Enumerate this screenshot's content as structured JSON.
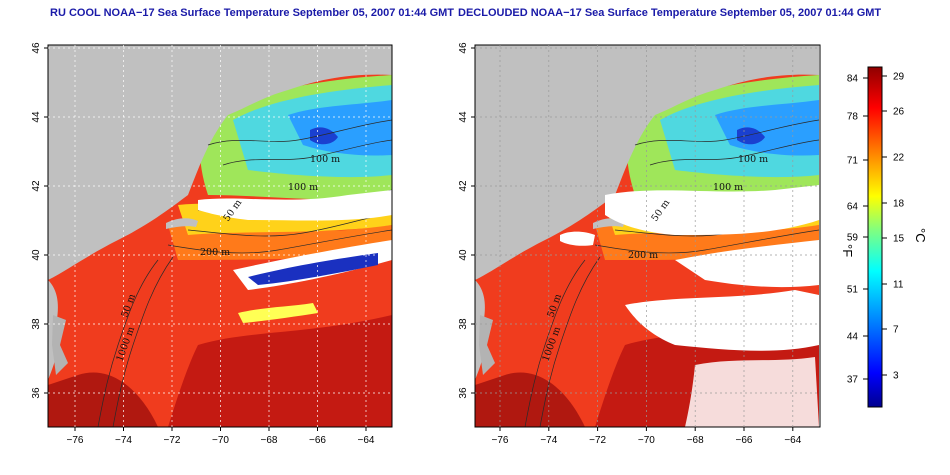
{
  "panels": [
    {
      "title": "RU COOL NOAA−17 Sea Surface Temperature September 05, 2007 01:44 GMT",
      "contour_labels": [
        "100 m",
        "100 m",
        "50 m",
        "200 m",
        "50 m",
        "1000 m"
      ]
    },
    {
      "title": "DECLOUDED NOAA−17 Sea Surface Temperature September 05, 2007 01:44 GMT",
      "contour_labels": [
        "100 m",
        "100 m",
        "50 m",
        "200 m",
        "50 m",
        "1000 m"
      ]
    }
  ],
  "axes": {
    "x_ticks": [
      "−76",
      "−74",
      "−72",
      "−70",
      "−68",
      "−66",
      "−64"
    ],
    "y_ticks": [
      "36",
      "38",
      "40",
      "42",
      "44",
      "46"
    ]
  },
  "colorbar": {
    "fahrenheit_ticks": [
      "84",
      "78",
      "71",
      "64",
      "59",
      "51",
      "44",
      "37"
    ],
    "celsius_ticks": [
      "29",
      "26",
      "22",
      "18",
      "15",
      "11",
      "7",
      "3"
    ],
    "fahrenheit_unit": "°F",
    "celsius_unit": "°C",
    "colors": [
      "#00008f",
      "#0000ff",
      "#0080ff",
      "#00ffff",
      "#80ff80",
      "#ffff00",
      "#ff8000",
      "#ff0000",
      "#8f0000"
    ]
  },
  "colors": {
    "land": "#c0c0c0",
    "cloud": "#ffffff",
    "ocean_warm": "#f03c1e",
    "ocean_hot": "#a01010",
    "shelf_cool": "#4fd8e0",
    "shelf_cold": "#2a7fff",
    "slope_yellow": "#ffd21a",
    "title_color": "#1a1aa8"
  }
}
